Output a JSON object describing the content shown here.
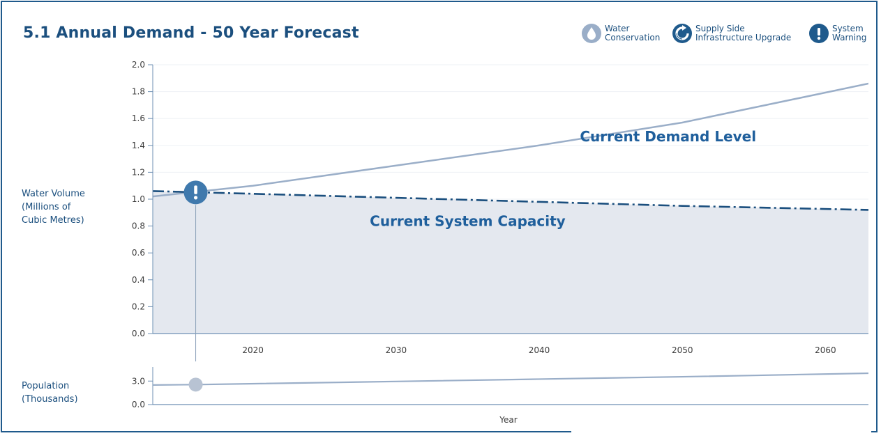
{
  "title": "5.1 Annual Demand - 50 Year Forecast",
  "legend": [
    {
      "icon": "water-drop-icon",
      "line1": "Water",
      "line2": "Conservation"
    },
    {
      "icon": "refresh-arrow-icon",
      "line1": "Supply Side",
      "line2": "Infrastructure Upgrade"
    },
    {
      "icon": "exclamation-icon",
      "line1": "System",
      "line2": "Warning"
    }
  ],
  "colors": {
    "accent": "#1b4f7e",
    "demand_line": "#9aaec8",
    "capacity_line": "#1b4f7e",
    "capacity_fill": "#e4e8ef",
    "marker": "#3f79ad",
    "population_marker": "#b8c3d3"
  },
  "chart_data": [
    {
      "type": "line",
      "title": "5.1 Annual Demand - 50 Year Forecast",
      "ylabel": [
        "Water Volume",
        "(Millions of",
        "Cubic Metres)"
      ],
      "xlabel": "",
      "ylim": [
        0,
        2.0
      ],
      "xlim": [
        2013,
        2063
      ],
      "yticks": [
        "0.0",
        "0.2",
        "0.4",
        "0.6",
        "0.8",
        "1.0",
        "1.2",
        "1.4",
        "1.6",
        "1.8",
        "2.0"
      ],
      "xticks": [
        "2020",
        "2030",
        "2040",
        "2050",
        "2060"
      ],
      "grid": true,
      "series": [
        {
          "x": [
            2013,
            2020,
            2030,
            2040,
            2050,
            2063
          ],
          "y": [
            1.02,
            1.1,
            1.25,
            1.4,
            1.57,
            1.86
          ],
          "style": "solid"
        },
        {
          "x": [
            2013,
            2020,
            2030,
            2040,
            2050,
            2063
          ],
          "y": [
            1.06,
            1.04,
            1.01,
            0.98,
            0.95,
            0.92
          ],
          "style": "dash-dot",
          "filled": true
        }
      ],
      "annotations": [
        {
          "text": "Current Demand Level",
          "x": 2049,
          "y": 1.43
        },
        {
          "text": "Current System Capacity",
          "x": 2035,
          "y": 0.8
        },
        {
          "type": "warning",
          "x": 2016,
          "y": 1.05
        }
      ]
    },
    {
      "type": "line",
      "ylabel": [
        "Population",
        "(Thousands)"
      ],
      "xlabel": "Year",
      "ylim": [
        0,
        4.8
      ],
      "xlim": [
        2013,
        2063
      ],
      "yticks": [
        "0.0",
        "3.0"
      ],
      "series": [
        {
          "x": [
            2013,
            2016,
            2030,
            2040,
            2050,
            2063
          ],
          "y": [
            2.5,
            2.55,
            2.95,
            3.25,
            3.55,
            4.0
          ],
          "style": "solid"
        }
      ],
      "annotations": [
        {
          "type": "marker",
          "x": 2016,
          "y": 2.55
        }
      ]
    }
  ]
}
